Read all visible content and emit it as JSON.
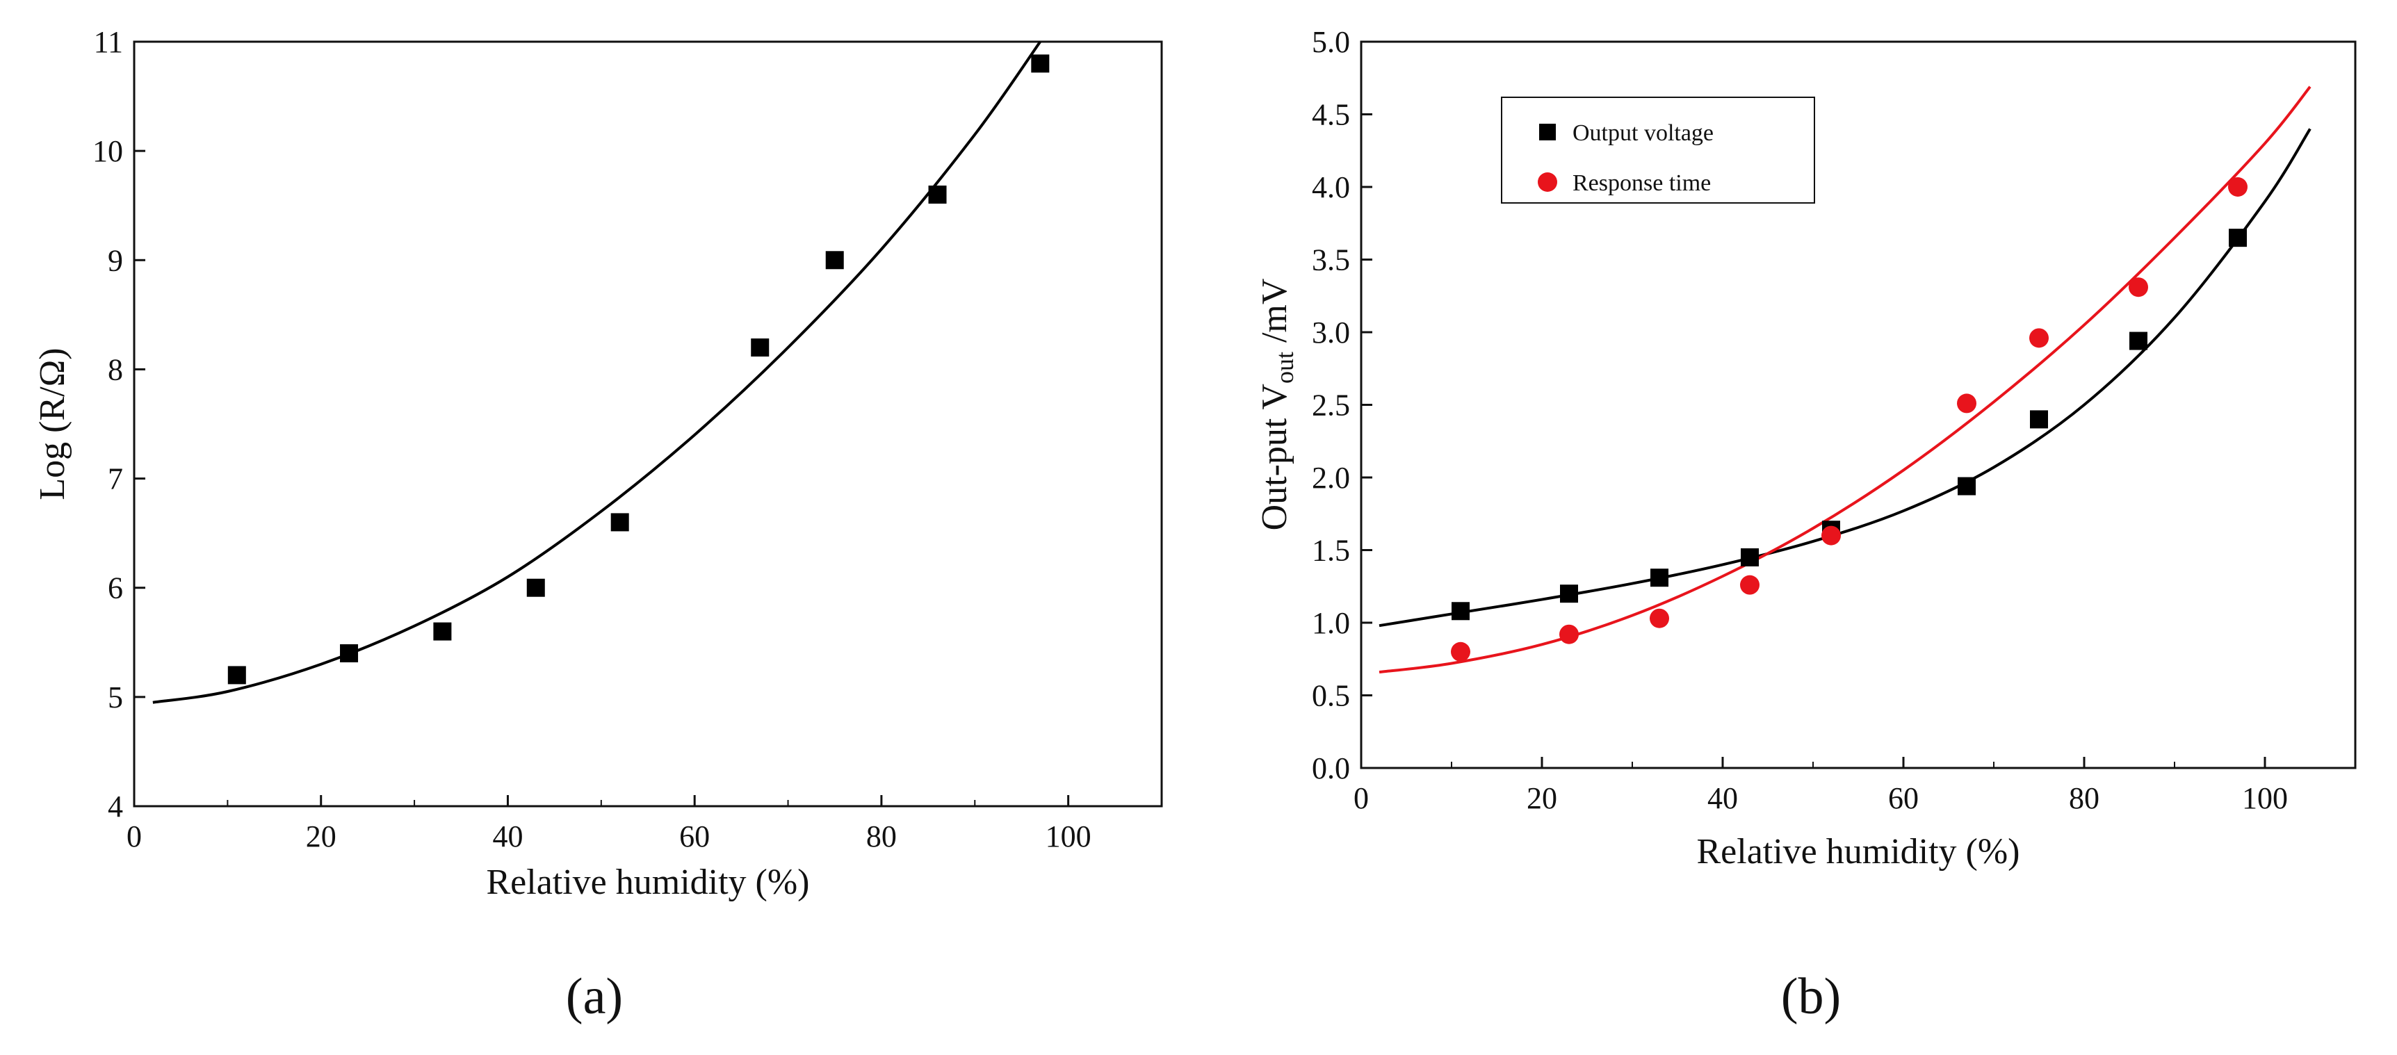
{
  "chart_data": [
    {
      "type": "scatter",
      "panel_label": "(a)",
      "xlabel": "Relative humidity (%)",
      "ylabel": "Log (R/Ω)",
      "xlim": [
        0,
        110
      ],
      "ylim": [
        4,
        11
      ],
      "xticks": [
        0,
        20,
        40,
        60,
        80,
        100
      ],
      "yticks": [
        4,
        5,
        6,
        7,
        8,
        9,
        10,
        11
      ],
      "grid": false,
      "series": [
        {
          "name": "Log (R/Ω)",
          "marker": "square",
          "color": "#000000",
          "x": [
            11,
            23,
            33,
            43,
            52,
            67,
            75,
            86,
            97
          ],
          "y": [
            5.2,
            5.4,
            5.6,
            6.0,
            6.6,
            8.2,
            9.0,
            9.6,
            10.8
          ]
        }
      ],
      "fits": [
        {
          "name": "fit",
          "color": "#000000",
          "x": [
            2,
            10,
            20,
            30,
            40,
            50,
            60,
            70,
            80,
            90,
            97
          ],
          "y": [
            4.95,
            5.05,
            5.3,
            5.65,
            6.1,
            6.7,
            7.4,
            8.2,
            9.1,
            10.15,
            11.0
          ]
        }
      ]
    },
    {
      "type": "scatter",
      "panel_label": "(b)",
      "xlabel": "Relative humidity (%)",
      "ylabel_main": "Out-put V",
      "ylabel_sub": "out",
      "ylabel_unit": " /mV",
      "xlim": [
        0,
        110
      ],
      "ylim": [
        0.0,
        5.0
      ],
      "xticks": [
        0,
        20,
        40,
        60,
        80,
        100
      ],
      "yticks": [
        "0.0",
        "0.5",
        "1.0",
        "1.5",
        "2.0",
        "2.5",
        "3.0",
        "3.5",
        "4.0",
        "4.5",
        "5.0"
      ],
      "grid": false,
      "legend_position": "top-left",
      "series": [
        {
          "name": "Output voltage",
          "marker": "square",
          "color": "#000000",
          "x": [
            11,
            23,
            33,
            43,
            52,
            67,
            75,
            86,
            97
          ],
          "y": [
            1.08,
            1.2,
            1.31,
            1.45,
            1.64,
            1.94,
            2.4,
            2.94,
            3.65
          ]
        },
        {
          "name": "Response time",
          "marker": "circle",
          "color": "#e8141c",
          "x": [
            11,
            23,
            33,
            43,
            52,
            67,
            75,
            86,
            97
          ],
          "y": [
            0.8,
            0.92,
            1.03,
            1.26,
            1.6,
            2.51,
            2.96,
            3.31,
            4.0
          ]
        }
      ],
      "fits": [
        {
          "name": "Output voltage fit",
          "color": "#000000",
          "x": [
            2,
            10,
            20,
            30,
            40,
            50,
            60,
            70,
            80,
            90,
            100,
            105
          ],
          "y": [
            0.98,
            1.06,
            1.16,
            1.27,
            1.4,
            1.56,
            1.77,
            2.07,
            2.5,
            3.1,
            3.9,
            4.4
          ]
        },
        {
          "name": "Response time fit",
          "color": "#e8141c",
          "x": [
            2,
            10,
            20,
            30,
            40,
            50,
            60,
            70,
            80,
            90,
            100,
            105
          ],
          "y": [
            0.66,
            0.72,
            0.85,
            1.05,
            1.32,
            1.65,
            2.05,
            2.52,
            3.05,
            3.65,
            4.3,
            4.69
          ]
        }
      ]
    }
  ]
}
